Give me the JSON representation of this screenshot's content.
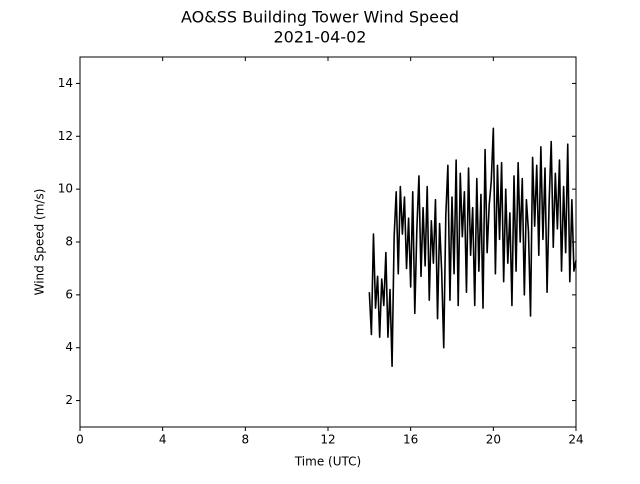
{
  "chart_data": {
    "type": "line",
    "title": "AO&SS Building Tower Wind Speed",
    "subtitle": "2021-04-02",
    "x_label": "Time (UTC)",
    "y_label": "Wind Speed (m/s)",
    "xlim": [
      0,
      24
    ],
    "xticks": [
      0,
      4,
      8,
      12,
      16,
      20,
      24
    ],
    "ylim": [
      1,
      15
    ],
    "yticks": [
      2,
      4,
      6,
      8,
      10,
      12,
      14
    ],
    "grid": false,
    "series": [
      {
        "color": "#000000",
        "x": [
          14.0,
          14.1,
          14.2,
          14.3,
          14.4,
          14.5,
          14.6,
          14.7,
          14.8,
          14.9,
          15.0,
          15.1,
          15.2,
          15.3,
          15.4,
          15.5,
          15.6,
          15.7,
          15.8,
          15.9,
          16.0,
          16.1,
          16.2,
          16.3,
          16.4,
          16.5,
          16.6,
          16.7,
          16.8,
          16.9,
          17.0,
          17.1,
          17.2,
          17.3,
          17.4,
          17.5,
          17.6,
          17.7,
          17.8,
          17.9,
          18.0,
          18.1,
          18.2,
          18.3,
          18.4,
          18.5,
          18.6,
          18.7,
          18.8,
          18.9,
          19.0,
          19.1,
          19.2,
          19.3,
          19.4,
          19.5,
          19.6,
          19.7,
          19.8,
          19.9,
          20.0,
          20.1,
          20.2,
          20.3,
          20.4,
          20.5,
          20.6,
          20.7,
          20.8,
          20.9,
          21.0,
          21.1,
          21.2,
          21.3,
          21.4,
          21.5,
          21.6,
          21.7,
          21.8,
          21.9,
          22.0,
          22.1,
          22.2,
          22.3,
          22.4,
          22.5,
          22.6,
          22.7,
          22.8,
          22.9,
          23.0,
          23.1,
          23.2,
          23.3,
          23.4,
          23.5,
          23.6,
          23.7,
          23.8,
          23.9,
          24.0
        ],
        "values": [
          6.1,
          4.5,
          8.3,
          5.5,
          6.7,
          4.4,
          6.6,
          5.6,
          7.6,
          4.4,
          6.2,
          3.3,
          8.2,
          9.9,
          6.8,
          10.1,
          8.3,
          9.7,
          7.0,
          8.9,
          6.3,
          9.9,
          5.3,
          8.5,
          10.5,
          6.7,
          9.3,
          7.1,
          10.1,
          5.8,
          8.8,
          7.2,
          9.6,
          5.1,
          8.7,
          6.9,
          4.0,
          9.0,
          10.9,
          5.8,
          9.7,
          6.8,
          11.1,
          5.6,
          10.6,
          8.2,
          9.9,
          6.1,
          10.8,
          7.5,
          9.3,
          5.6,
          10.4,
          6.9,
          9.8,
          5.5,
          11.5,
          7.6,
          9.4,
          10.3,
          12.3,
          6.8,
          10.9,
          8.1,
          11.0,
          6.5,
          10.0,
          7.2,
          9.1,
          5.6,
          10.5,
          6.9,
          11.0,
          8.0,
          10.4,
          6.0,
          9.6,
          8.4,
          5.2,
          11.2,
          8.6,
          10.9,
          7.5,
          11.6,
          8.1,
          10.8,
          6.1,
          9.5,
          11.8,
          7.8,
          10.6,
          8.5,
          11.1,
          6.9,
          10.1,
          7.6,
          11.7,
          6.5,
          9.6,
          6.9,
          7.3
        ]
      }
    ]
  }
}
